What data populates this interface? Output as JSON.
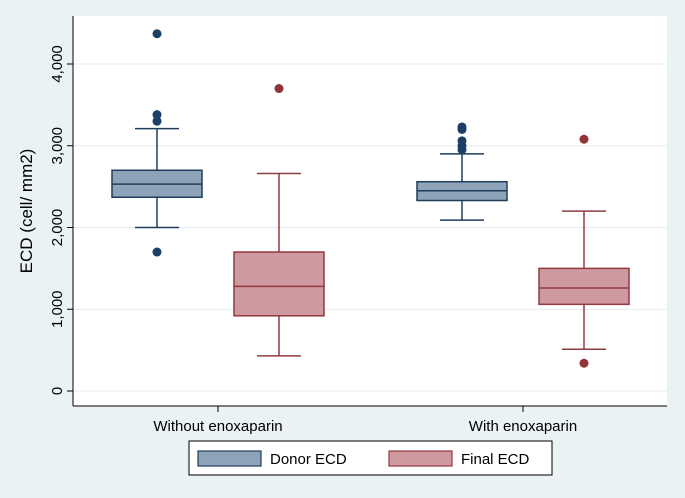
{
  "chart_data": {
    "type": "boxplot",
    "title": "",
    "ylabel": "ECD (cell/ mm2)",
    "xlabel": "",
    "ylim": [
      -180,
      4600
    ],
    "yticks": [
      0,
      1000,
      2000,
      3000,
      4000
    ],
    "ytick_labels": [
      "0",
      "1,000",
      "2,000",
      "3,000",
      "4,000"
    ],
    "categories": [
      "Without enoxaparin",
      "With enoxaparin"
    ],
    "grid": true,
    "legend_position": "bottom",
    "series": [
      {
        "name": "Donor ECD",
        "color": "#8fa3b8",
        "edge_color": "#1f3d5c",
        "outlier_color": "#1c3f66",
        "boxes": [
          {
            "whisker_low": 2000,
            "q1": 2370,
            "median": 2530,
            "q3": 2700,
            "whisker_high": 3210,
            "outliers": [
              1700,
              3300,
              3380,
              4370
            ]
          },
          {
            "whisker_low": 2090,
            "q1": 2330,
            "median": 2450,
            "q3": 2560,
            "whisker_high": 2900,
            "outliers": [
              2950,
              3000,
              3060,
              3200,
              3230
            ]
          }
        ]
      },
      {
        "name": "Final ECD",
        "color": "#cf9a9f",
        "edge_color": "#93393f",
        "outlier_color": "#91343a",
        "boxes": [
          {
            "whisker_low": 430,
            "q1": 920,
            "median": 1280,
            "q3": 1700,
            "whisker_high": 2660,
            "outliers": [
              3700
            ]
          },
          {
            "whisker_low": 510,
            "q1": 1060,
            "median": 1260,
            "q3": 1500,
            "whisker_high": 2200,
            "outliers": [
              340,
              3080
            ]
          }
        ]
      }
    ]
  }
}
